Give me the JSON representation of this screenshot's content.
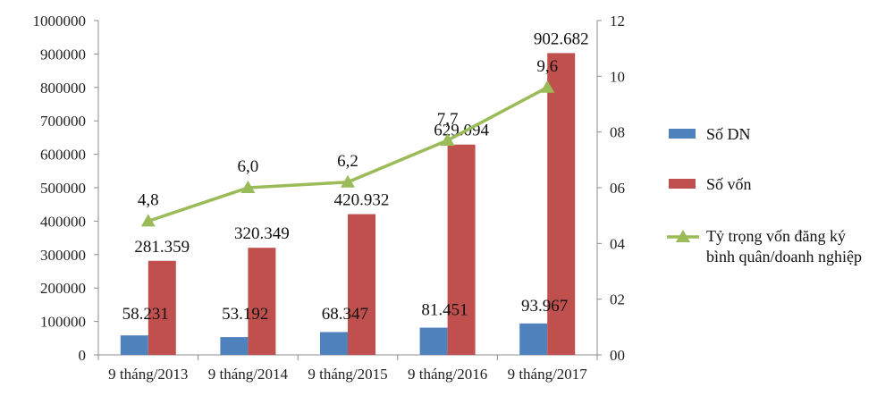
{
  "chart_data": {
    "type": "bar",
    "categories": [
      "9 tháng/2013",
      "9 tháng/2014",
      "9 tháng/2015",
      "9 tháng/2016",
      "9 tháng/2017"
    ],
    "series": [
      {
        "name": "Số DN",
        "type": "bar",
        "axis": "left",
        "color": "#4f81bd",
        "values": [
          58231,
          53192,
          68347,
          81451,
          93967
        ],
        "labels": [
          "58.231",
          "53.192",
          "68.347",
          "81.451",
          "93.967"
        ]
      },
      {
        "name": "Số vốn",
        "type": "bar",
        "axis": "left",
        "color": "#c0504d",
        "values": [
          281359,
          320349,
          420932,
          629094,
          902682
        ],
        "labels": [
          "281.359",
          "320.349",
          "420.932",
          "629.094",
          "902.682"
        ]
      },
      {
        "name": "Tỷ trọng vốn đăng ký bình quân/doanh nghiệp",
        "legend_lines": [
          "Tỷ trọng vốn đăng ký",
          "bình quân/doanh nghiệp"
        ],
        "type": "line",
        "axis": "right",
        "color": "#9bbb59",
        "values": [
          4.8,
          6.0,
          6.2,
          7.7,
          9.6
        ],
        "labels": [
          "4,8",
          "6,0",
          "6,2",
          "7,7",
          "9,6"
        ]
      }
    ],
    "ylim_left": [
      0,
      1000000
    ],
    "yticks_left": [
      "0",
      "100000",
      "200000",
      "300000",
      "400000",
      "500000",
      "600000",
      "700000",
      "800000",
      "900000",
      "1000000"
    ],
    "ylim_right": [
      0,
      12
    ],
    "yticks_right": [
      "00",
      "02",
      "04",
      "06",
      "08",
      "10",
      "12"
    ],
    "legend_position": "right",
    "grid": false
  }
}
